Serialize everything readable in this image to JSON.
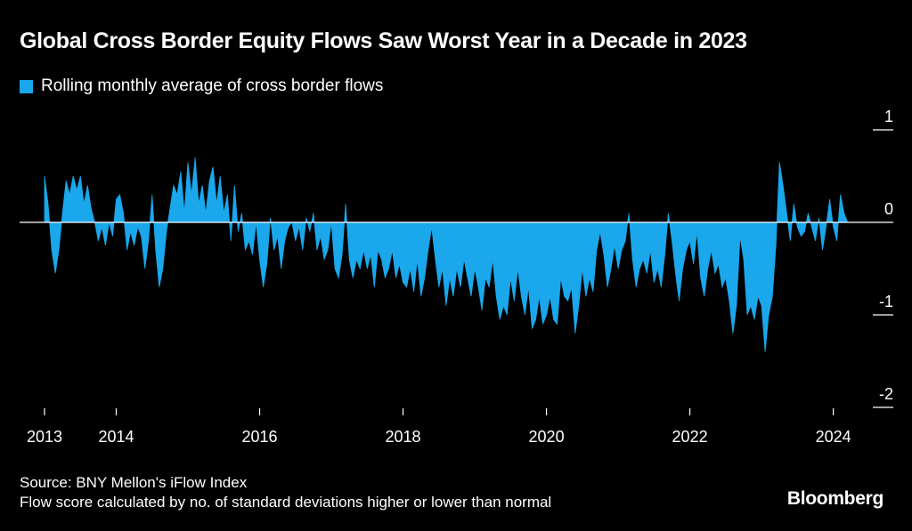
{
  "chart_data": {
    "type": "area",
    "title": "Global Cross Border Equity Flows Saw Worst Year in a Decade in 2023",
    "legend": [
      {
        "label": "Rolling monthly average of cross border flows",
        "color": "#1aa7ec"
      }
    ],
    "colors": {
      "area": "#1aa7ec",
      "background": "#000000",
      "text": "#ffffff",
      "axis": "#ffffff"
    },
    "xlabel": "",
    "ylabel": "",
    "xlim": [
      2013,
      2024.25
    ],
    "ylim": [
      -2,
      1
    ],
    "x_ticks": [
      {
        "value": 2013,
        "label": "2013"
      },
      {
        "value": 2014,
        "label": "2014"
      },
      {
        "value": 2016,
        "label": "2016"
      },
      {
        "value": 2018,
        "label": "2018"
      },
      {
        "value": 2020,
        "label": "2020"
      },
      {
        "value": 2022,
        "label": "2022"
      },
      {
        "value": 2024,
        "label": "2024"
      }
    ],
    "y_ticks": [
      {
        "value": 1,
        "label": "1"
      },
      {
        "value": 0,
        "label": "0"
      },
      {
        "value": -1,
        "label": "-1"
      },
      {
        "value": -2,
        "label": "-2"
      }
    ],
    "legend_position": "top-left",
    "grid": false,
    "series": [
      {
        "name": "Rolling monthly average of cross border flows",
        "points": [
          [
            2013.0,
            0.5
          ],
          [
            2013.05,
            0.2
          ],
          [
            2013.1,
            -0.3
          ],
          [
            2013.15,
            -0.55
          ],
          [
            2013.2,
            -0.3
          ],
          [
            2013.25,
            0.1
          ],
          [
            2013.3,
            0.45
          ],
          [
            2013.35,
            0.3
          ],
          [
            2013.4,
            0.5
          ],
          [
            2013.45,
            0.35
          ],
          [
            2013.5,
            0.5
          ],
          [
            2013.55,
            0.2
          ],
          [
            2013.6,
            0.4
          ],
          [
            2013.65,
            0.15
          ],
          [
            2013.7,
            0.0
          ],
          [
            2013.75,
            -0.2
          ],
          [
            2013.8,
            -0.05
          ],
          [
            2013.85,
            -0.25
          ],
          [
            2013.9,
            0.0
          ],
          [
            2013.95,
            -0.15
          ],
          [
            2014.0,
            0.25
          ],
          [
            2014.05,
            0.3
          ],
          [
            2014.1,
            0.1
          ],
          [
            2014.15,
            -0.3
          ],
          [
            2014.2,
            -0.1
          ],
          [
            2014.25,
            -0.25
          ],
          [
            2014.3,
            -0.05
          ],
          [
            2014.35,
            -0.15
          ],
          [
            2014.4,
            -0.5
          ],
          [
            2014.45,
            -0.2
          ],
          [
            2014.5,
            0.3
          ],
          [
            2014.55,
            -0.3
          ],
          [
            2014.6,
            -0.7
          ],
          [
            2014.65,
            -0.5
          ],
          [
            2014.7,
            -0.1
          ],
          [
            2014.75,
            0.15
          ],
          [
            2014.8,
            0.4
          ],
          [
            2014.85,
            0.3
          ],
          [
            2014.9,
            0.55
          ],
          [
            2014.95,
            0.1
          ],
          [
            2015.0,
            0.65
          ],
          [
            2015.05,
            0.3
          ],
          [
            2015.1,
            0.7
          ],
          [
            2015.15,
            0.2
          ],
          [
            2015.2,
            0.4
          ],
          [
            2015.25,
            0.1
          ],
          [
            2015.3,
            0.45
          ],
          [
            2015.35,
            0.6
          ],
          [
            2015.4,
            0.2
          ],
          [
            2015.45,
            0.5
          ],
          [
            2015.5,
            0.1
          ],
          [
            2015.55,
            0.3
          ],
          [
            2015.6,
            -0.2
          ],
          [
            2015.65,
            0.4
          ],
          [
            2015.7,
            -0.1
          ],
          [
            2015.75,
            0.1
          ],
          [
            2015.8,
            -0.3
          ],
          [
            2015.85,
            -0.2
          ],
          [
            2015.9,
            -0.35
          ],
          [
            2015.95,
            0.0
          ],
          [
            2016.0,
            -0.4
          ],
          [
            2016.05,
            -0.7
          ],
          [
            2016.1,
            -0.45
          ],
          [
            2016.15,
            0.05
          ],
          [
            2016.2,
            -0.3
          ],
          [
            2016.25,
            -0.15
          ],
          [
            2016.3,
            -0.5
          ],
          [
            2016.35,
            -0.2
          ],
          [
            2016.4,
            -0.05
          ],
          [
            2016.45,
            0.0
          ],
          [
            2016.5,
            -0.2
          ],
          [
            2016.55,
            -0.05
          ],
          [
            2016.6,
            -0.3
          ],
          [
            2016.65,
            0.05
          ],
          [
            2016.7,
            -0.1
          ],
          [
            2016.75,
            0.1
          ],
          [
            2016.8,
            -0.3
          ],
          [
            2016.85,
            -0.15
          ],
          [
            2016.9,
            -0.4
          ],
          [
            2016.95,
            -0.3
          ],
          [
            2017.0,
            0.0
          ],
          [
            2017.05,
            -0.5
          ],
          [
            2017.1,
            -0.6
          ],
          [
            2017.15,
            -0.35
          ],
          [
            2017.2,
            0.2
          ],
          [
            2017.25,
            -0.4
          ],
          [
            2017.3,
            -0.6
          ],
          [
            2017.35,
            -0.4
          ],
          [
            2017.4,
            -0.5
          ],
          [
            2017.45,
            -0.3
          ],
          [
            2017.5,
            -0.5
          ],
          [
            2017.55,
            -0.35
          ],
          [
            2017.6,
            -0.7
          ],
          [
            2017.65,
            -0.3
          ],
          [
            2017.7,
            -0.4
          ],
          [
            2017.75,
            -0.6
          ],
          [
            2017.8,
            -0.5
          ],
          [
            2017.85,
            -0.3
          ],
          [
            2017.9,
            -0.6
          ],
          [
            2017.95,
            -0.45
          ],
          [
            2018.0,
            -0.65
          ],
          [
            2018.05,
            -0.7
          ],
          [
            2018.1,
            -0.5
          ],
          [
            2018.15,
            -0.75
          ],
          [
            2018.2,
            -0.4
          ],
          [
            2018.25,
            -0.8
          ],
          [
            2018.3,
            -0.6
          ],
          [
            2018.35,
            -0.3
          ],
          [
            2018.4,
            -0.05
          ],
          [
            2018.45,
            -0.4
          ],
          [
            2018.5,
            -0.7
          ],
          [
            2018.55,
            -0.5
          ],
          [
            2018.6,
            -0.9
          ],
          [
            2018.65,
            -0.6
          ],
          [
            2018.7,
            -0.8
          ],
          [
            2018.75,
            -0.5
          ],
          [
            2018.8,
            -0.7
          ],
          [
            2018.85,
            -0.4
          ],
          [
            2018.9,
            -0.6
          ],
          [
            2018.95,
            -0.8
          ],
          [
            2019.0,
            -0.5
          ],
          [
            2019.05,
            -0.7
          ],
          [
            2019.1,
            -0.95
          ],
          [
            2019.15,
            -0.6
          ],
          [
            2019.2,
            -0.7
          ],
          [
            2019.25,
            -0.4
          ],
          [
            2019.3,
            -0.8
          ],
          [
            2019.35,
            -1.05
          ],
          [
            2019.4,
            -0.9
          ],
          [
            2019.45,
            -1.0
          ],
          [
            2019.5,
            -0.6
          ],
          [
            2019.55,
            -0.85
          ],
          [
            2019.6,
            -0.5
          ],
          [
            2019.65,
            -0.8
          ],
          [
            2019.7,
            -1.0
          ],
          [
            2019.75,
            -0.7
          ],
          [
            2019.8,
            -1.15
          ],
          [
            2019.85,
            -1.05
          ],
          [
            2019.9,
            -0.8
          ],
          [
            2019.95,
            -1.1
          ],
          [
            2020.0,
            -1.0
          ],
          [
            2020.05,
            -0.8
          ],
          [
            2020.1,
            -1.05
          ],
          [
            2020.15,
            -1.1
          ],
          [
            2020.2,
            -0.6
          ],
          [
            2020.25,
            -0.8
          ],
          [
            2020.3,
            -0.85
          ],
          [
            2020.35,
            -0.7
          ],
          [
            2020.4,
            -1.2
          ],
          [
            2020.45,
            -0.9
          ],
          [
            2020.5,
            -0.5
          ],
          [
            2020.55,
            -0.8
          ],
          [
            2020.6,
            -0.6
          ],
          [
            2020.65,
            -0.75
          ],
          [
            2020.7,
            -0.3
          ],
          [
            2020.75,
            -0.1
          ],
          [
            2020.8,
            -0.35
          ],
          [
            2020.85,
            -0.7
          ],
          [
            2020.9,
            -0.5
          ],
          [
            2020.95,
            -0.25
          ],
          [
            2021.0,
            -0.5
          ],
          [
            2021.05,
            -0.3
          ],
          [
            2021.1,
            -0.2
          ],
          [
            2021.15,
            0.1
          ],
          [
            2021.2,
            -0.4
          ],
          [
            2021.25,
            -0.7
          ],
          [
            2021.3,
            -0.5
          ],
          [
            2021.35,
            -0.4
          ],
          [
            2021.4,
            -0.55
          ],
          [
            2021.45,
            -0.3
          ],
          [
            2021.5,
            -0.65
          ],
          [
            2021.55,
            -0.5
          ],
          [
            2021.6,
            -0.7
          ],
          [
            2021.65,
            -0.35
          ],
          [
            2021.7,
            0.1
          ],
          [
            2021.75,
            -0.2
          ],
          [
            2021.8,
            -0.55
          ],
          [
            2021.85,
            -0.85
          ],
          [
            2021.9,
            -0.5
          ],
          [
            2021.95,
            -0.3
          ],
          [
            2022.0,
            -0.2
          ],
          [
            2022.05,
            -0.45
          ],
          [
            2022.1,
            -0.1
          ],
          [
            2022.15,
            -0.6
          ],
          [
            2022.2,
            -0.8
          ],
          [
            2022.25,
            -0.5
          ],
          [
            2022.3,
            -0.3
          ],
          [
            2022.35,
            -0.55
          ],
          [
            2022.4,
            -0.45
          ],
          [
            2022.45,
            -0.7
          ],
          [
            2022.5,
            -0.6
          ],
          [
            2022.55,
            -0.85
          ],
          [
            2022.6,
            -1.2
          ],
          [
            2022.65,
            -0.9
          ],
          [
            2022.7,
            -0.15
          ],
          [
            2022.75,
            -0.4
          ],
          [
            2022.8,
            -1.0
          ],
          [
            2022.85,
            -0.9
          ],
          [
            2022.9,
            -1.05
          ],
          [
            2022.95,
            -0.8
          ],
          [
            2023.0,
            -0.9
          ],
          [
            2023.05,
            -1.4
          ],
          [
            2023.1,
            -1.0
          ],
          [
            2023.15,
            -0.8
          ],
          [
            2023.2,
            -0.25
          ],
          [
            2023.25,
            0.65
          ],
          [
            2023.3,
            0.4
          ],
          [
            2023.35,
            0.1
          ],
          [
            2023.4,
            -0.2
          ],
          [
            2023.45,
            0.2
          ],
          [
            2023.5,
            -0.05
          ],
          [
            2023.55,
            -0.15
          ],
          [
            2023.6,
            -0.1
          ],
          [
            2023.65,
            0.1
          ],
          [
            2023.7,
            -0.05
          ],
          [
            2023.75,
            -0.2
          ],
          [
            2023.8,
            0.05
          ],
          [
            2023.85,
            -0.3
          ],
          [
            2023.9,
            -0.05
          ],
          [
            2023.95,
            0.25
          ],
          [
            2024.0,
            -0.05
          ],
          [
            2024.05,
            -0.2
          ],
          [
            2024.1,
            0.3
          ],
          [
            2024.15,
            0.1
          ],
          [
            2024.2,
            0.0
          ]
        ]
      }
    ]
  },
  "source": "Source: BNY Mellon's iFlow Index",
  "note": "Flow score calculated by no. of standard deviations higher or lower than normal",
  "brand": "Bloomberg"
}
